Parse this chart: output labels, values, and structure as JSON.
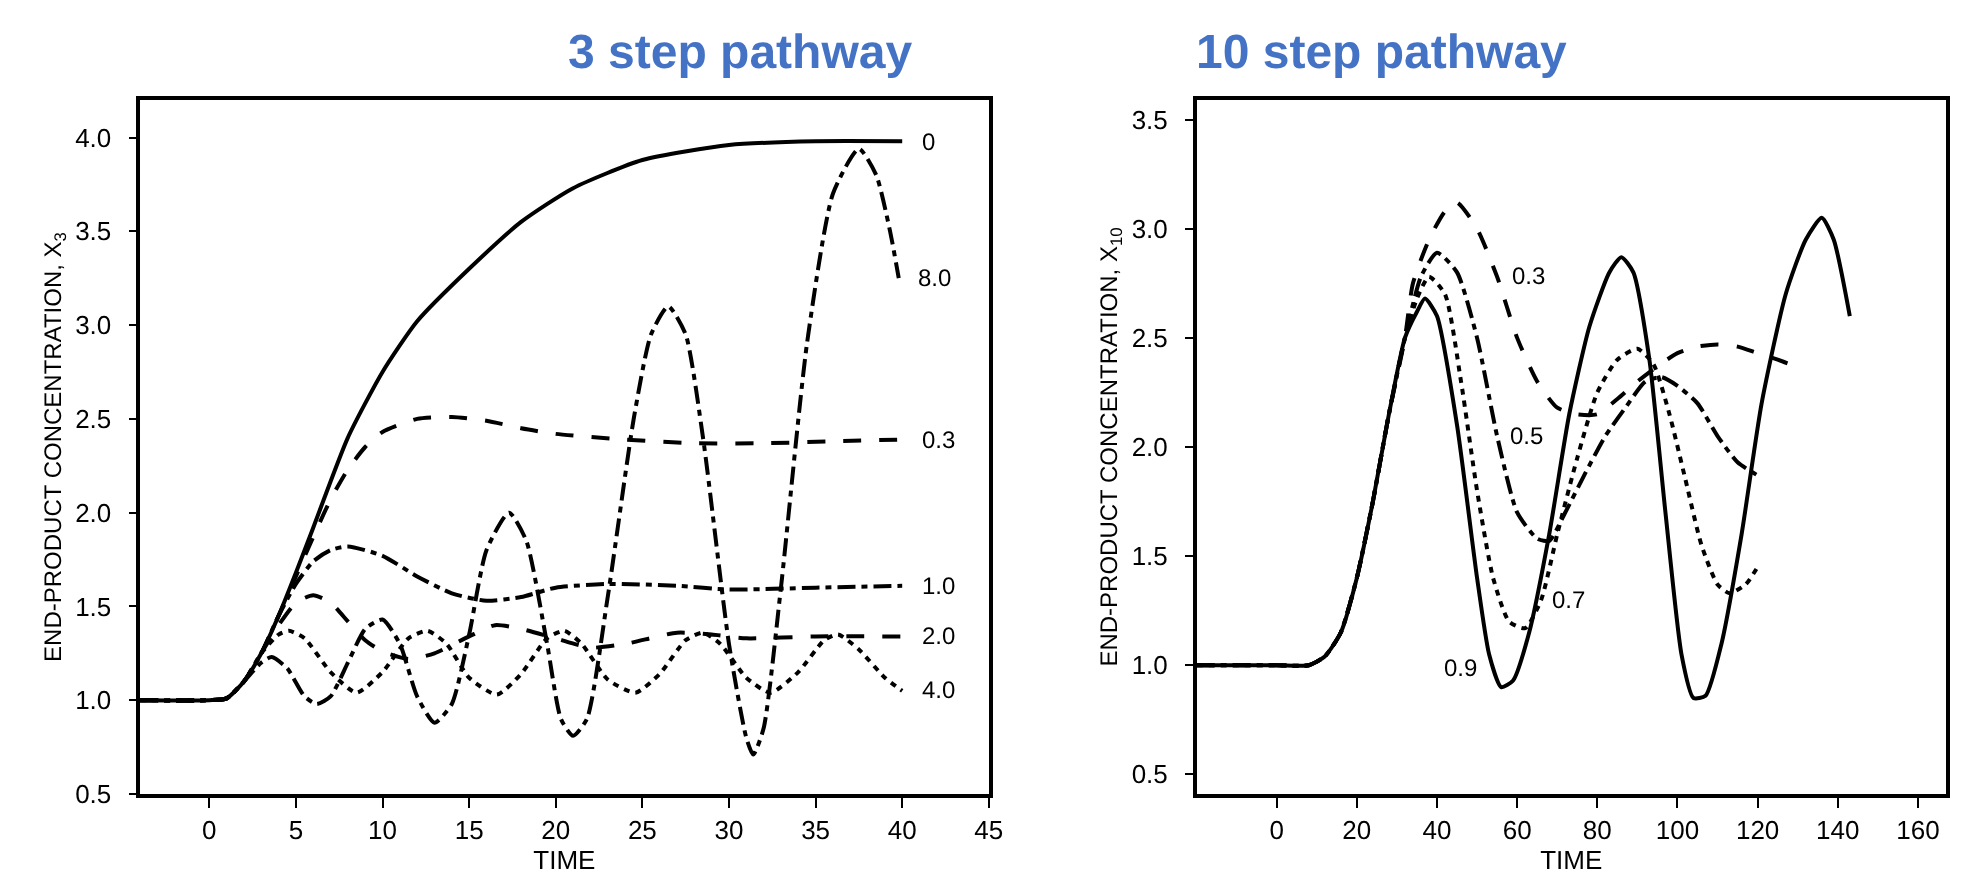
{
  "chart_data": [
    {
      "type": "line",
      "title": "3 step pathway",
      "legend": false,
      "xlabel": "TIME",
      "ylabel": "END-PRODUCT CONCENTRATION, X$_{3}$",
      "xlim": [
        -4,
        45
      ],
      "xticks": [
        0,
        5,
        10,
        15,
        20,
        25,
        30,
        35,
        40,
        45
      ],
      "ylim": [
        0.5,
        4.2
      ],
      "yticks": [
        0.5,
        {
          "value": 1,
          "label": "1.0"
        },
        1.5,
        {
          "value": 2,
          "label": "2.0"
        },
        2.5,
        {
          "value": 3,
          "label": "3.0"
        },
        3.5,
        {
          "value": 4,
          "label": "4.0"
        }
      ],
      "grid": false,
      "marker": "none",
      "series": [
        {
          "name": "0",
          "color": "#000000",
          "line_style": "solid",
          "x": [
            -4,
            0,
            1,
            2,
            3,
            4,
            5,
            6,
            8,
            10,
            12,
            15,
            18,
            21,
            25,
            30,
            35,
            40
          ],
          "values": [
            1.0,
            1.0,
            1.01,
            1.1,
            1.25,
            1.45,
            1.68,
            1.92,
            2.4,
            2.75,
            3.02,
            3.3,
            3.55,
            3.73,
            3.88,
            3.96,
            3.98,
            3.98
          ]
        },
        {
          "name": "0.3",
          "color": "#000000",
          "line_style": "dashed",
          "x": [
            -4,
            0,
            1,
            2,
            3,
            4,
            5,
            6,
            7,
            8,
            9,
            10,
            12,
            14,
            16,
            18,
            20,
            24,
            28,
            32,
            36,
            40
          ],
          "values": [
            1.0,
            1.0,
            1.01,
            1.1,
            1.25,
            1.45,
            1.66,
            1.87,
            2.07,
            2.23,
            2.35,
            2.43,
            2.5,
            2.51,
            2.49,
            2.45,
            2.42,
            2.39,
            2.37,
            2.37,
            2.38,
            2.39
          ]
        },
        {
          "name": "1.0",
          "color": "#000000",
          "line_style": "dashdot",
          "x": [
            -4,
            0,
            1,
            2,
            3,
            4,
            5,
            6,
            7,
            8,
            10,
            12,
            14,
            16,
            18,
            20,
            23,
            27,
            30,
            35,
            40
          ],
          "values": [
            1.0,
            1.0,
            1.01,
            1.1,
            1.25,
            1.45,
            1.62,
            1.74,
            1.8,
            1.82,
            1.77,
            1.66,
            1.57,
            1.53,
            1.55,
            1.6,
            1.62,
            1.61,
            1.59,
            1.6,
            1.61
          ]
        },
        {
          "name": "2.0",
          "color": "#000000",
          "line_style": "dashed",
          "x": [
            -4,
            0,
            1,
            2,
            3,
            4,
            5,
            6,
            7,
            8,
            9,
            10,
            11.5,
            13,
            15,
            16.5,
            18,
            20,
            22,
            24,
            27,
            29,
            31,
            35,
            40
          ],
          "values": [
            1.0,
            1.0,
            1.01,
            1.1,
            1.25,
            1.4,
            1.52,
            1.56,
            1.52,
            1.42,
            1.32,
            1.26,
            1.22,
            1.25,
            1.34,
            1.4,
            1.38,
            1.33,
            1.28,
            1.3,
            1.36,
            1.35,
            1.33,
            1.34,
            1.34
          ]
        },
        {
          "name": "4.0",
          "color": "#000000",
          "line_style": "dotted",
          "x": [
            -4,
            0,
            1,
            2,
            3,
            4,
            4.6,
            5.5,
            7,
            8.5,
            10,
            11.5,
            12.6,
            13.7,
            15,
            16.6,
            18,
            19.5,
            20.5,
            21.5,
            23,
            24.6,
            26,
            27.5,
            28.5,
            29.5,
            31,
            32.4,
            34,
            35.5,
            36.3,
            37.5,
            39,
            40
          ],
          "values": [
            1.0,
            1.0,
            1.01,
            1.1,
            1.25,
            1.35,
            1.37,
            1.33,
            1.15,
            1.04,
            1.15,
            1.33,
            1.37,
            1.3,
            1.12,
            1.03,
            1.14,
            1.33,
            1.37,
            1.3,
            1.11,
            1.04,
            1.14,
            1.32,
            1.36,
            1.3,
            1.12,
            1.04,
            1.15,
            1.32,
            1.35,
            1.27,
            1.12,
            1.05
          ]
        },
        {
          "name": "8.0",
          "color": "#000000",
          "line_style": "dashdot",
          "x": [
            -4,
            0,
            1,
            2,
            3,
            3.6,
            4.5,
            5.5,
            6.2,
            7,
            8,
            9,
            10,
            11,
            12,
            13,
            14,
            15,
            16,
            17.3,
            18.3,
            19.5,
            20.3,
            21,
            21.8,
            23,
            24.5,
            25.5,
            26.5,
            27.5,
            28.5,
            30,
            31,
            31.4,
            32,
            33,
            34.5,
            36,
            37.5,
            38.5,
            39.3,
            39.8
          ],
          "values": [
            1.0,
            1.0,
            1.01,
            1.1,
            1.2,
            1.23,
            1.17,
            1.02,
            0.98,
            1.02,
            1.2,
            1.38,
            1.43,
            1.3,
            1.02,
            0.88,
            0.98,
            1.35,
            1.8,
            2.0,
            1.85,
            1.3,
            0.9,
            0.81,
            0.9,
            1.55,
            2.5,
            2.95,
            3.1,
            2.95,
            2.4,
            1.3,
            0.8,
            0.71,
            0.85,
            1.6,
            2.9,
            3.7,
            3.94,
            3.8,
            3.5,
            3.25
          ]
        }
      ]
    },
    {
      "type": "line",
      "title": "10 step pathway",
      "legend": false,
      "xlabel": "TIME",
      "ylabel": "END-PRODUCT CONCENTRATION, X$_{10}$",
      "xlim": [
        -20,
        167
      ],
      "xticks": [
        0,
        20,
        40,
        60,
        80,
        100,
        120,
        140,
        160
      ],
      "ylim": [
        0.41,
        3.59
      ],
      "yticks": [
        0.5,
        {
          "value": 1,
          "label": "1.0"
        },
        1.5,
        {
          "value": 2,
          "label": "2.0"
        },
        2.5,
        {
          "value": 3,
          "label": "3.0"
        },
        3.5
      ],
      "grid": false,
      "marker": "none",
      "series": [
        {
          "name": "0.3",
          "color": "#000000",
          "line_style": "dashed",
          "x": [
            -20,
            0,
            8,
            12,
            16,
            20,
            24,
            28,
            32,
            34,
            38,
            42,
            45,
            50,
            55,
            60,
            65,
            70,
            75,
            80,
            85,
            90,
            95,
            100,
            105,
            110,
            115,
            120,
            125,
            128
          ],
          "values": [
            1.0,
            1.0,
            1.0,
            1.04,
            1.15,
            1.4,
            1.75,
            2.15,
            2.5,
            2.75,
            2.95,
            3.08,
            3.12,
            3.0,
            2.78,
            2.5,
            2.3,
            2.18,
            2.15,
            2.15,
            2.22,
            2.3,
            2.37,
            2.43,
            2.46,
            2.47,
            2.46,
            2.43,
            2.4,
            2.38
          ]
        },
        {
          "name": "0.5",
          "color": "#000000",
          "line_style": "dashdot",
          "x": [
            -20,
            0,
            8,
            12,
            16,
            20,
            24,
            28,
            32,
            36,
            40,
            45,
            50,
            55,
            60,
            65,
            68,
            72,
            77,
            82,
            87,
            92,
            96,
            100,
            105,
            110,
            115,
            120
          ],
          "values": [
            1.0,
            1.0,
            1.0,
            1.04,
            1.15,
            1.4,
            1.75,
            2.15,
            2.5,
            2.78,
            2.89,
            2.8,
            2.5,
            2.05,
            1.7,
            1.58,
            1.57,
            1.7,
            1.88,
            2.05,
            2.18,
            2.3,
            2.32,
            2.28,
            2.2,
            2.05,
            1.93,
            1.87
          ]
        },
        {
          "name": "0.7",
          "color": "#000000",
          "line_style": "dotted",
          "x": [
            -20,
            0,
            8,
            12,
            16,
            20,
            24,
            28,
            32,
            35,
            38,
            42,
            46,
            50,
            54,
            58,
            62,
            66,
            70,
            75,
            80,
            85,
            90,
            94,
            98,
            102,
            106,
            110,
            113,
            117,
            120
          ],
          "values": [
            1.0,
            1.0,
            1.0,
            1.04,
            1.15,
            1.4,
            1.75,
            2.15,
            2.5,
            2.68,
            2.78,
            2.7,
            2.3,
            1.8,
            1.4,
            1.2,
            1.17,
            1.3,
            1.6,
            1.95,
            2.25,
            2.4,
            2.45,
            2.38,
            2.15,
            1.85,
            1.55,
            1.37,
            1.33,
            1.37,
            1.45
          ]
        },
        {
          "name": "0.9",
          "color": "#000000",
          "line_style": "solid",
          "x": [
            -20,
            0,
            8,
            12,
            16,
            20,
            24,
            28,
            32,
            35,
            37,
            40,
            45,
            50,
            53,
            56,
            59,
            63,
            68,
            73,
            78,
            83,
            86,
            89,
            93,
            97,
            101,
            104,
            107,
            111,
            116,
            121,
            127,
            132,
            136,
            139,
            143
          ],
          "values": [
            1.0,
            1.0,
            1.0,
            1.04,
            1.15,
            1.4,
            1.75,
            2.15,
            2.5,
            2.62,
            2.68,
            2.6,
            2.1,
            1.4,
            1.05,
            0.9,
            0.93,
            1.15,
            1.6,
            2.15,
            2.55,
            2.8,
            2.87,
            2.8,
            2.4,
            1.7,
            1.05,
            0.85,
            0.86,
            1.1,
            1.6,
            2.2,
            2.7,
            2.95,
            3.05,
            2.95,
            2.6
          ]
        }
      ]
    }
  ]
}
